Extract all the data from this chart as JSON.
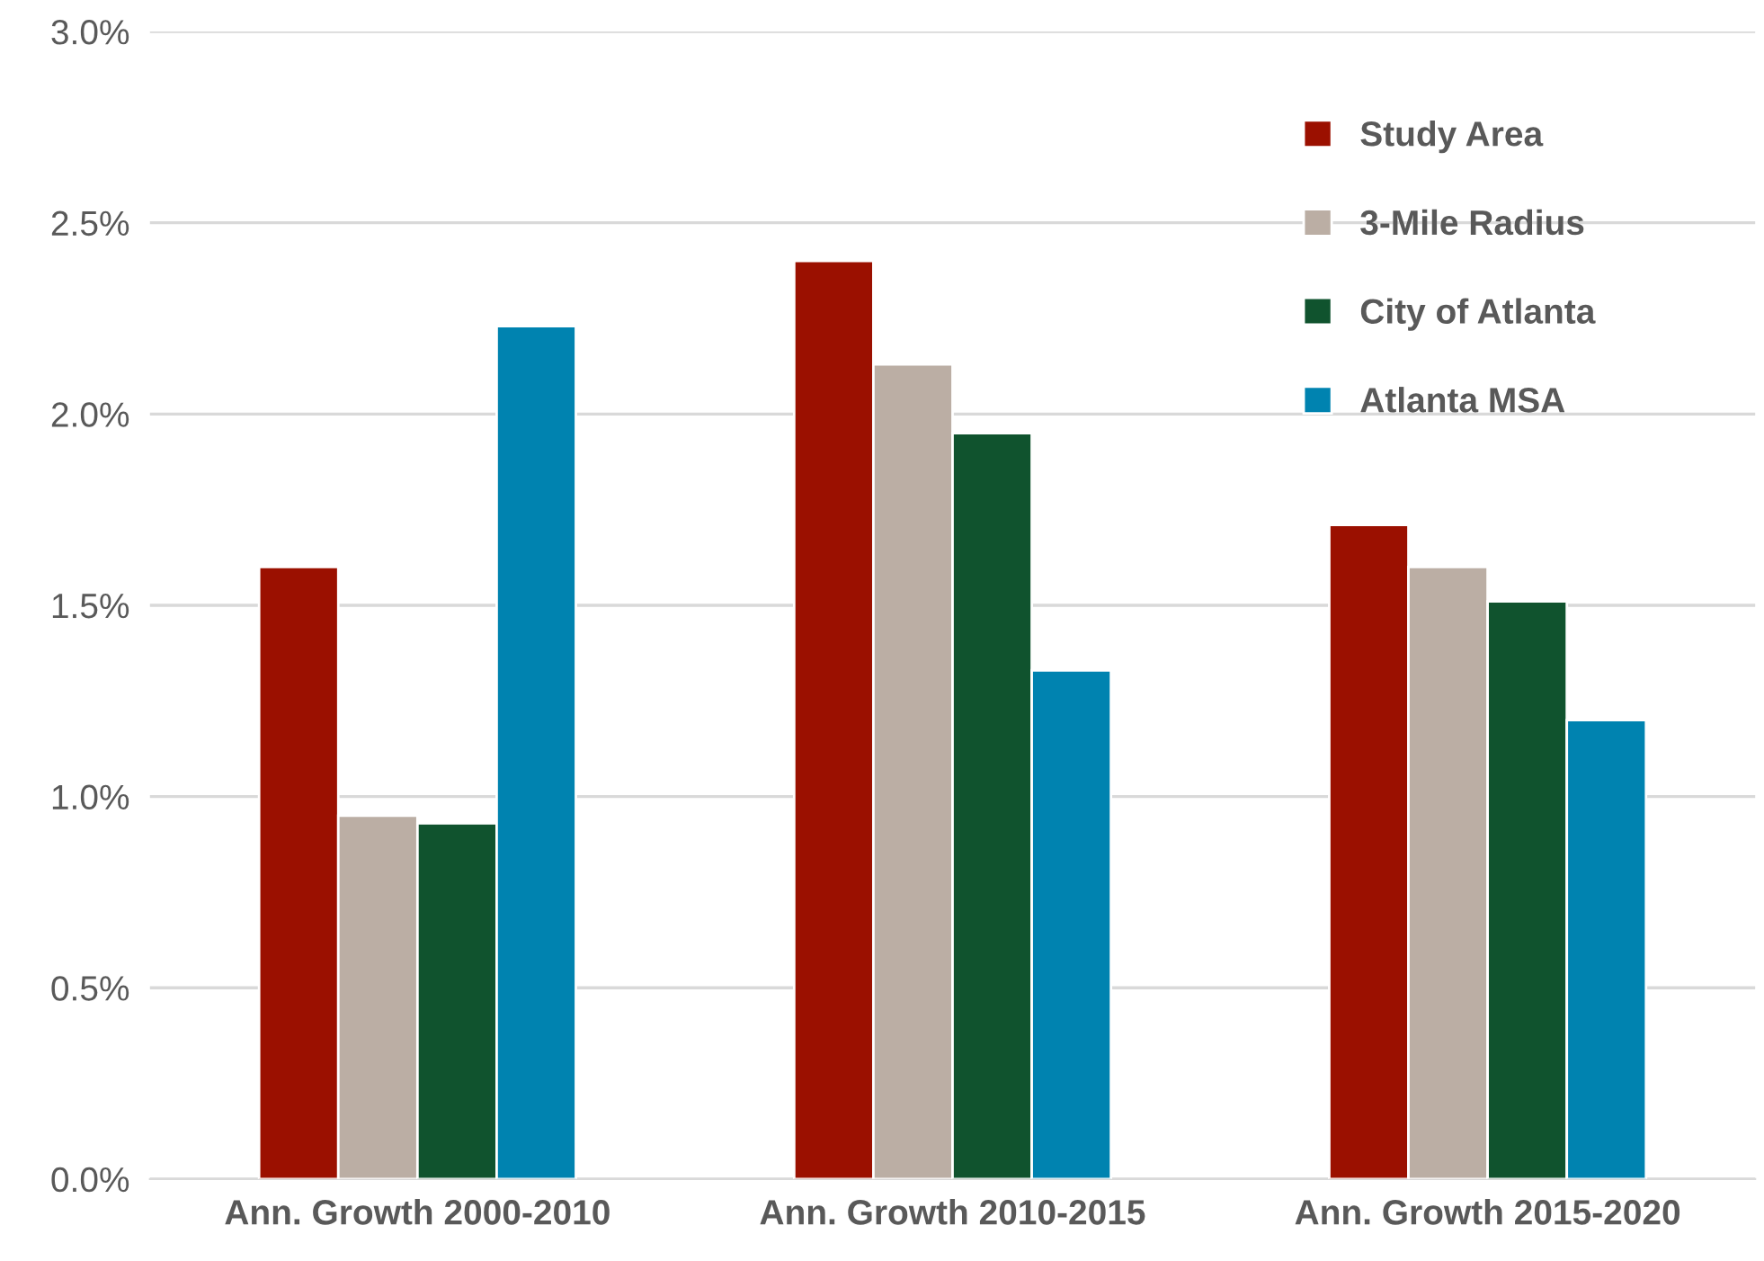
{
  "chart_data": {
    "type": "bar",
    "categories": [
      "Ann. Growth 2000-2010",
      "Ann. Growth 2010-2015",
      "Ann. Growth 2015-2020"
    ],
    "series": [
      {
        "name": "Study Area",
        "color": "#9b1000",
        "values": [
          1.6,
          2.4,
          1.71
        ]
      },
      {
        "name": "3-Mile Radius",
        "color": "#bbaea4",
        "values": [
          0.95,
          2.13,
          1.6
        ]
      },
      {
        "name": "City of Atlanta",
        "color": "#10532e",
        "values": [
          0.93,
          1.95,
          1.51
        ]
      },
      {
        "name": "Atlanta MSA",
        "color": "#0083b0",
        "values": [
          2.23,
          1.33,
          1.2
        ]
      }
    ],
    "ylim": [
      0,
      3
    ],
    "yticks": [
      {
        "value": 0,
        "label": "0.0%"
      },
      {
        "value": 0.5,
        "label": "0.5%"
      },
      {
        "value": 1,
        "label": "1.0%"
      },
      {
        "value": 1.5,
        "label": "1.5%"
      },
      {
        "value": 2,
        "label": "2.0%"
      },
      {
        "value": 2.5,
        "label": "2.5%"
      },
      {
        "value": 3,
        "label": "3.0%"
      }
    ],
    "grid": "y",
    "legend": "top right"
  }
}
